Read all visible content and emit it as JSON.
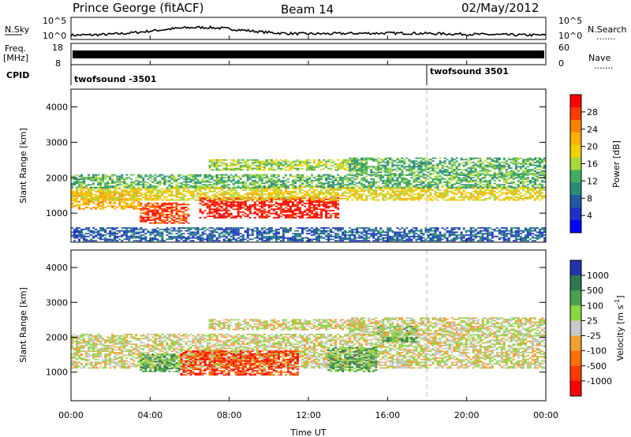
{
  "header": {
    "station": "Prince George (fitACF)",
    "beam": "Beam 14",
    "date": "02/May/2012"
  },
  "panels": {
    "nsky_label": "N.Sky",
    "nsky_ticks": [
      "10^5",
      "10^0"
    ],
    "nsearch_label": "N.Search",
    "nsearch_ticks": [
      "10^5",
      "10^0"
    ],
    "freq_label_1": "Freq.",
    "freq_label_2": "[MHz]",
    "freq_ticks": [
      "18",
      "8"
    ],
    "nave_label": "Nave",
    "nave_ticks": [
      "60",
      "0"
    ],
    "cpid_label": "CPID",
    "cpid_entries": [
      {
        "text": "twofsound -3501",
        "hour": 0
      },
      {
        "text": "twofsound 3501",
        "hour": 18
      }
    ],
    "dotted_marker": "......."
  },
  "colorbars": {
    "power": {
      "label": "Power [dB]",
      "ticks": [
        "28",
        "24",
        "20",
        "16",
        "12",
        "8",
        "4"
      ],
      "colors": [
        "#ff0000",
        "#ff3a00",
        "#ff8000",
        "#ffb000",
        "#f0d000",
        "#a8d83a",
        "#40b060",
        "#2a8a78",
        "#205aa0",
        "#1e30c8",
        "#0000ff"
      ]
    },
    "velocity": {
      "label_main": "Velocity  [m s",
      "label_exp": "-1",
      "label_close": "]",
      "ticks": [
        "1000",
        "500",
        "100",
        "25",
        "-25",
        "-100",
        "-500",
        "-1000"
      ],
      "colors": [
        "#2233aa",
        "#2e7850",
        "#4aa050",
        "#8ad840",
        "#c8c8c8",
        "#f0a030",
        "#ff7000",
        "#ff3a00",
        "#ff0000"
      ]
    }
  },
  "chart_data": {
    "type": "heatmap",
    "x_ticks": [
      "00:00",
      "04:00",
      "08:00",
      "12:00",
      "16:00",
      "20:00",
      "00:00"
    ],
    "xlabel": "Time UT",
    "ylabel": "Slant Range [km]",
    "y_ticks": [
      1000,
      2000,
      3000,
      4000
    ],
    "xlim_hours": [
      0,
      24
    ],
    "ylim_km": [
      180,
      4500
    ],
    "power_bands": [
      {
        "h0": 0,
        "h1": 3.5,
        "r0": 1100,
        "r1": 1600,
        "level": 7
      },
      {
        "h0": 3.5,
        "h1": 6,
        "r0": 700,
        "r1": 1300,
        "level": 9
      },
      {
        "h0": 6.5,
        "h1": 13.5,
        "r0": 850,
        "r1": 1450,
        "level": 10
      },
      {
        "h0": 0,
        "h1": 24,
        "r0": 1350,
        "r1": 1750,
        "level": 6
      },
      {
        "h0": 0,
        "h1": 24,
        "r0": 1700,
        "r1": 2100,
        "level": 4
      },
      {
        "h0": 7,
        "h1": 15,
        "r0": 2200,
        "r1": 2500,
        "level": 5
      },
      {
        "h0": 14,
        "h1": 24,
        "r0": 2050,
        "r1": 2550,
        "level": 4
      },
      {
        "h0": 0,
        "h1": 24,
        "r0": 200,
        "r1": 600,
        "level": 2
      }
    ],
    "velocity_bands": [
      {
        "h0": 0,
        "h1": 24,
        "r0": 1100,
        "r1": 2100,
        "level": 4
      },
      {
        "h0": 3.5,
        "h1": 5.5,
        "r0": 1000,
        "r1": 1500,
        "level": 6
      },
      {
        "h0": 5.5,
        "h1": 11.5,
        "r0": 900,
        "r1": 1600,
        "level": 1
      },
      {
        "h0": 13,
        "h1": 15.5,
        "r0": 1000,
        "r1": 1700,
        "level": 6
      },
      {
        "h0": 15.5,
        "h1": 17.5,
        "r0": 1850,
        "r1": 2300,
        "level": 6
      },
      {
        "h0": 7,
        "h1": 15,
        "r0": 2200,
        "r1": 2500,
        "level": 4
      },
      {
        "h0": 14,
        "h1": 24,
        "r0": 2050,
        "r1": 2550,
        "level": 4
      }
    ]
  }
}
